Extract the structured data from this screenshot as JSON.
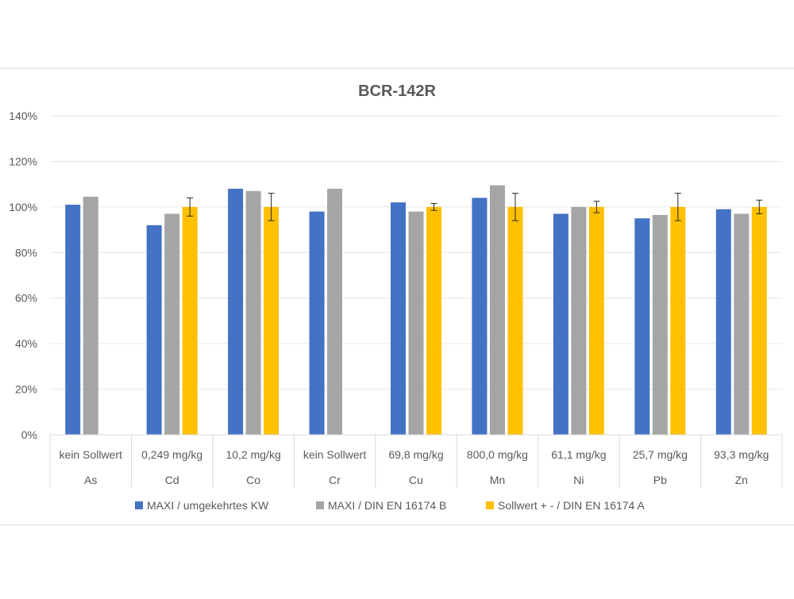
{
  "chart_data": {
    "type": "bar",
    "title": "BCR-142R",
    "categories": [
      "As",
      "Cd",
      "Co",
      "Cr",
      "Cu",
      "Mn",
      "Ni",
      "Pb",
      "Zn"
    ],
    "sublabels": [
      "kein Sollwert",
      "0,249 mg/kg",
      "10,2 mg/kg",
      "kein Sollwert",
      "69,8 mg/kg",
      "800,0 mg/kg",
      "61,1 mg/kg",
      "25,7 mg/kg",
      "93,3 mg/kg"
    ],
    "ylim": [
      0,
      140
    ],
    "yticks": [
      0,
      20,
      40,
      60,
      80,
      100,
      120,
      140
    ],
    "ytick_labels": [
      "0%",
      "20%",
      "40%",
      "60%",
      "80%",
      "100%",
      "120%",
      "140%"
    ],
    "grid": true,
    "legend_position": "bottom",
    "series": [
      {
        "name": "MAXI / umgekehrtes KW",
        "color": "#4472C4",
        "values": [
          101,
          92,
          108,
          98,
          102,
          104,
          97,
          95,
          99
        ]
      },
      {
        "name": "MAXI / DIN EN 16174 B",
        "color": "#A5A5A5",
        "values": [
          104.5,
          97,
          107,
          108,
          98,
          109.5,
          100,
          96.5,
          97
        ]
      },
      {
        "name": "Sollwert + - / DIN EN 16174 A",
        "color": "#FFC000",
        "values": [
          null,
          100,
          100,
          null,
          100,
          100,
          100,
          100,
          100
        ],
        "errors": [
          null,
          4,
          6,
          null,
          1.5,
          6,
          2.5,
          6,
          3
        ]
      }
    ]
  }
}
